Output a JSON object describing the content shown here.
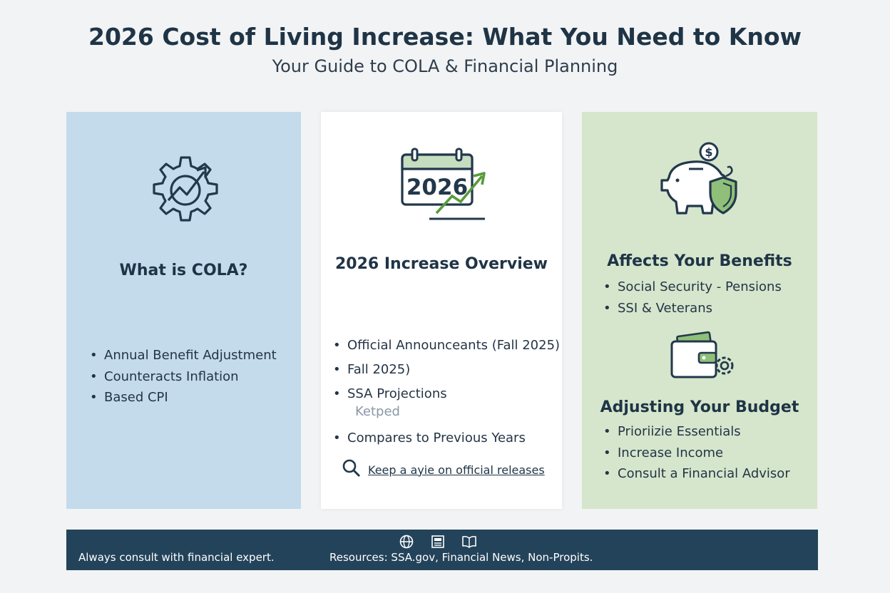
{
  "header": {
    "title": "2026 Cost of Living Increase: What You Need to Know",
    "subtitle": "Your Guide to COLA & Financial Planning"
  },
  "panels": [
    {
      "icon": "gear-trend-icon",
      "heading": "What is COLA?",
      "bullets": [
        "Annual Benefit Adjustment",
        "Counteracts Inflation",
        "Based CPI"
      ]
    },
    {
      "icon": "calendar-growth-icon",
      "icon_text": "2026",
      "heading": "2026 Increase Overview",
      "bullets": [
        "Official Announceants (Fall 2025)",
        "Fall 2025)",
        "SSA Projections"
      ],
      "faded_text": "Ketped",
      "bullets_2": [
        "Compares to Previous Years"
      ],
      "link_text": "Keep a ayie on official releases"
    },
    {
      "icon": "piggy-bank-shield-icon",
      "heading": "Affects Your Benefits",
      "bullets": [
        "Social Security  -  Pensions",
        "SSI & Veterans"
      ],
      "icon_2": "wallet-gear-icon",
      "heading_2": "Adjusting Your Budget",
      "bullets_2": [
        "Prioriizie Essentials",
        "Increase Income",
        "Consult a Financial Advisor"
      ]
    }
  ],
  "footer": {
    "left_text": "Always consult with financial expert.",
    "right_text": "Resources: SSA.gov, Financial News, Non-Propits.",
    "icons": [
      "globe-icon",
      "news-icon",
      "book-icon"
    ]
  },
  "colors": {
    "panel_blue": "#c3dbeb",
    "panel_white": "#ffffff",
    "panel_green": "#d5e6cc",
    "footer_bg": "#23435a",
    "text_dark": "#1f3446",
    "accent_green": "#5a9a3c"
  }
}
